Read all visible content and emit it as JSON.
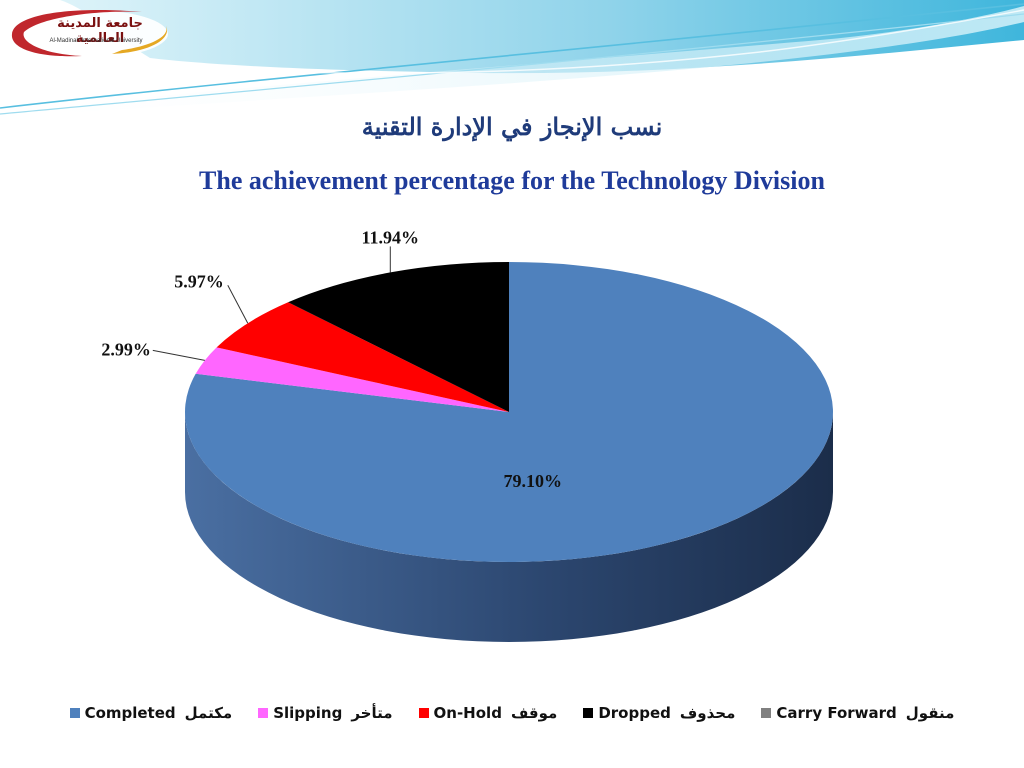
{
  "logo": {
    "name_ar": "جامعة المدينة العالمية",
    "name_en": "Al-Madinah International University"
  },
  "title_ar": "نسب الإنجاز في الإدارة التقنية",
  "title_en": "The achievement percentage for the Technology Division",
  "colors": {
    "completed": "#4f81bd",
    "slipping": "#ff66ff",
    "on_hold": "#ff0000",
    "dropped": "#000000",
    "carry_forward": "#808080"
  },
  "chart_data": {
    "type": "pie",
    "is_3d": true,
    "title": "The achievement percentage for the Technology Division",
    "categories": [
      "Completed",
      "Slipping",
      "On-Hold",
      "Dropped",
      "Carry Forward"
    ],
    "values": [
      79.1,
      2.99,
      5.97,
      11.94,
      0
    ],
    "data_labels": [
      "79.10%",
      "2.99%",
      "5.97%",
      "11.94%",
      ""
    ],
    "legend_position": "bottom"
  },
  "legend": [
    {
      "en": "Completed",
      "ar": "مكتمل",
      "color": "#4f81bd"
    },
    {
      "en": "Slipping",
      "ar": "متأخر",
      "color": "#ff66ff"
    },
    {
      "en": "On-Hold",
      "ar": "موقف",
      "color": "#ff0000"
    },
    {
      "en": "Dropped",
      "ar": "محذوف",
      "color": "#000000"
    },
    {
      "en": "Carry Forward",
      "ar": "منقول",
      "color": "#808080"
    }
  ]
}
